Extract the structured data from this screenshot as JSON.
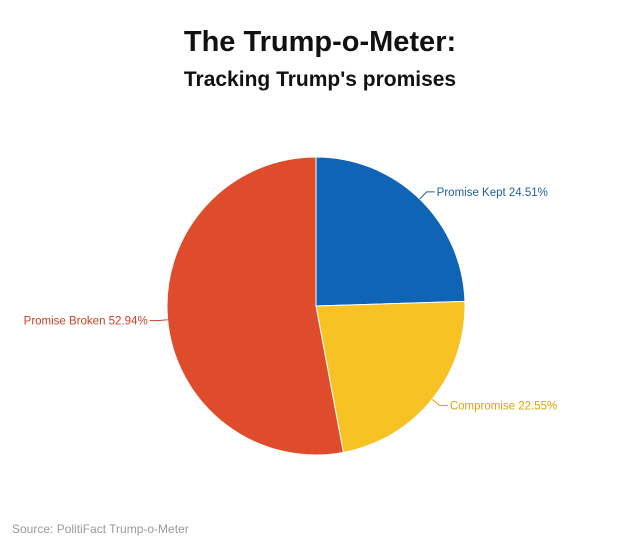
{
  "header": {
    "title": "The Trump-o-Meter:",
    "subtitle": "Tracking Trump's promises"
  },
  "source": "Source: PolitiFact Trump-o-Meter",
  "chart_data": {
    "type": "pie",
    "title": "The Trump-o-Meter:",
    "subtitle": "Tracking Trump's promises",
    "legend": "none",
    "slices": [
      {
        "label": "Promise Kept",
        "value": 24.51,
        "display": "Promise Kept 24.51%",
        "color": "#0f64b6",
        "label_color": "#1f5f9e"
      },
      {
        "label": "Compromise",
        "value": 22.55,
        "display": "Compromise 22.55%",
        "color": "#f7c224",
        "label_color": "#d9a600"
      },
      {
        "label": "Promise Broken",
        "value": 52.94,
        "display": "Promise Broken 52.94%",
        "color": "#df4c2b",
        "label_color": "#c8432a"
      }
    ]
  }
}
